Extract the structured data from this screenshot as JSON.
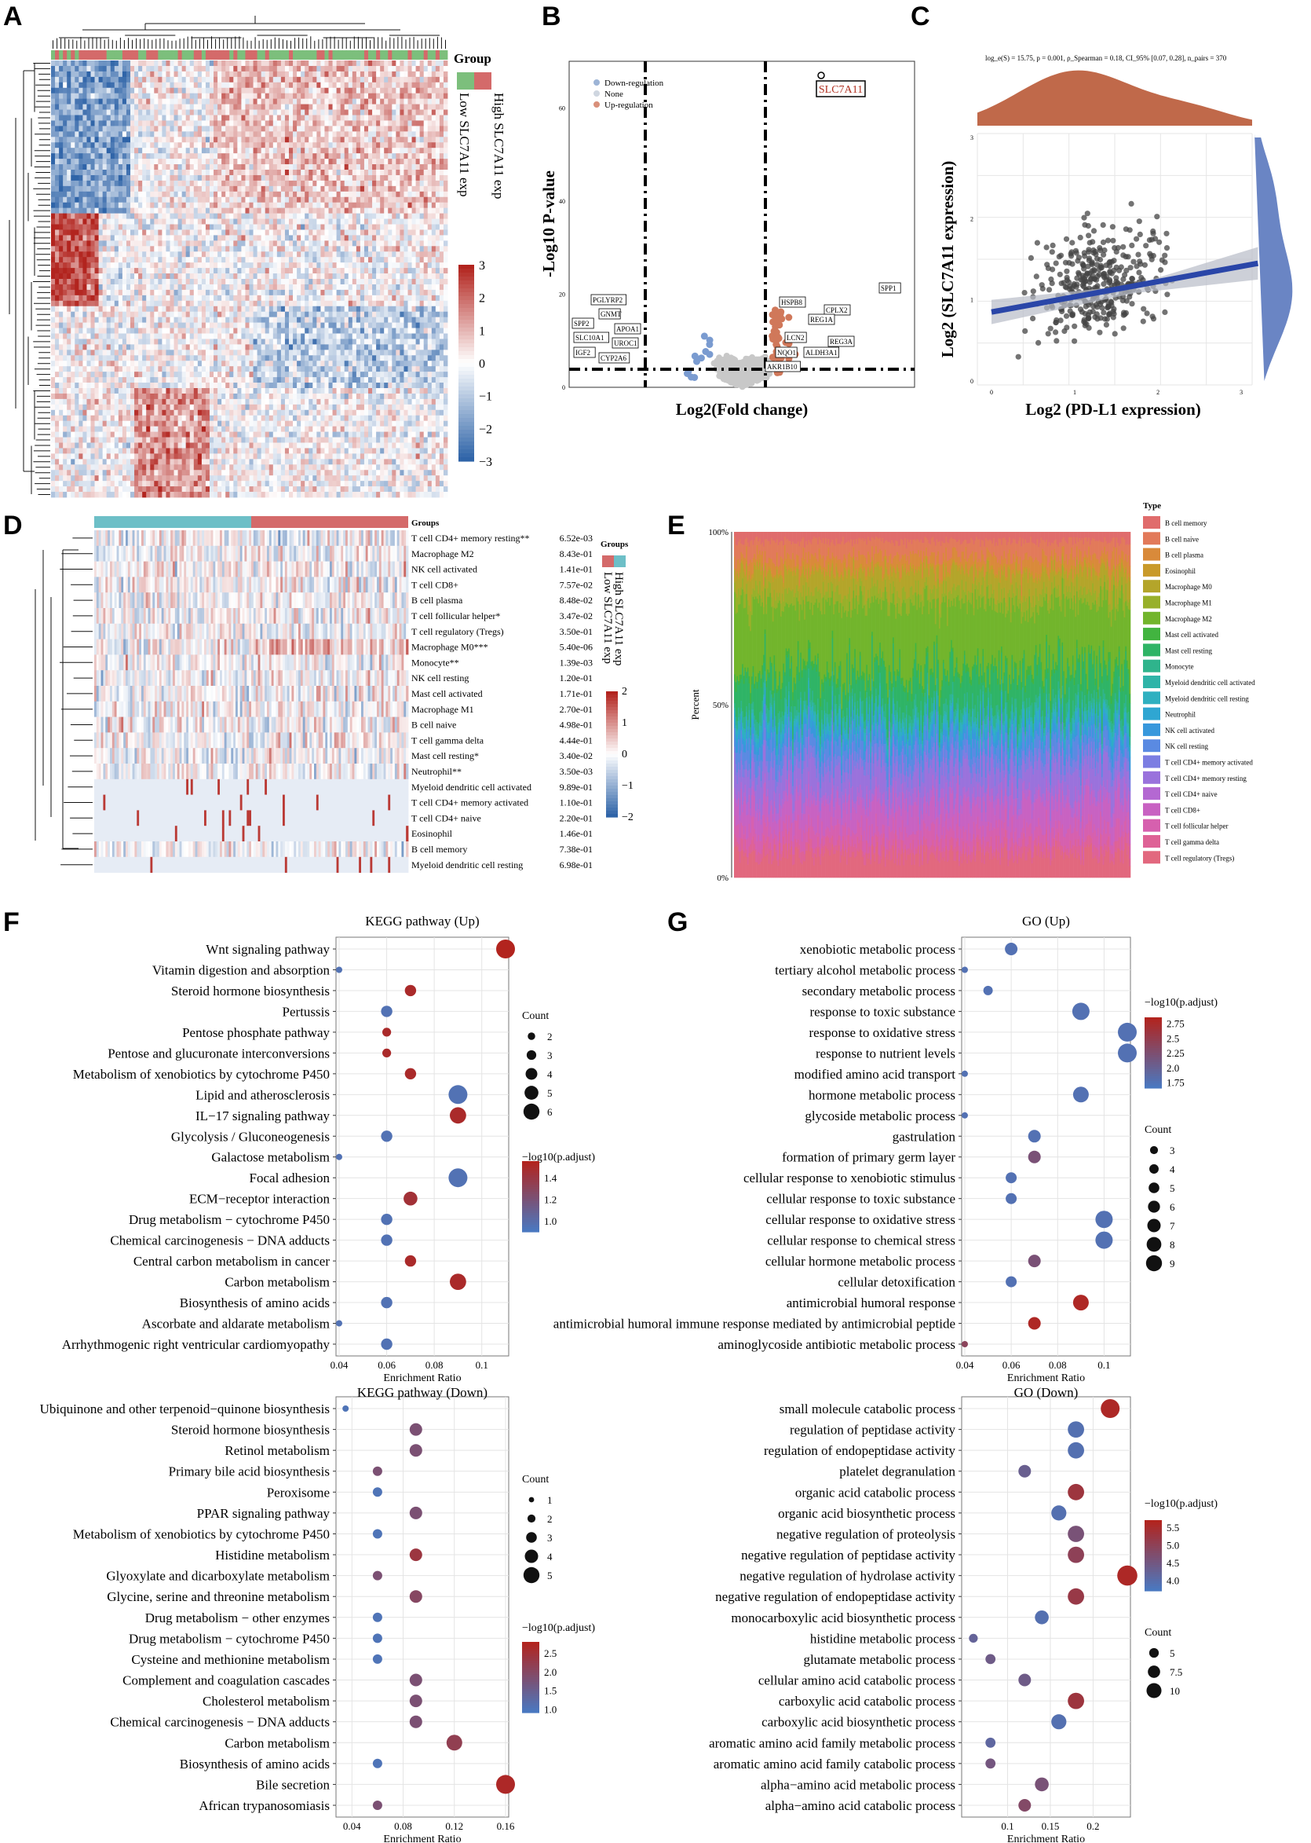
{
  "panel_letters": [
    "A",
    "B",
    "C",
    "D",
    "E",
    "F",
    "G"
  ],
  "colors": {
    "up": "#c0392b",
    "down": "#4a78c0",
    "none": "#c8c8c8",
    "high": "#d46a6a",
    "low": "#7cbf7c",
    "teal": "#6dbfc7"
  },
  "panel_a": {
    "legend_title": "Group",
    "group_labels": [
      "High SLC7A11 exp",
      "Low SLC7A11 exp"
    ],
    "colorbar_ticks": [
      "3",
      "2",
      "1",
      "0",
      "−1",
      "−2",
      "−3"
    ]
  },
  "panel_b": {
    "highlight": "SLC7A11",
    "legend": [
      "Down-regulation",
      "None",
      "Up-regulation"
    ],
    "xlabel": "Log2(Fold change)",
    "ylabel": "-Log10 P-value",
    "yticks": [
      "0",
      "20",
      "40",
      "60"
    ],
    "gene_labels_left": [
      "PGLYRP2",
      "GNMT",
      "SPP2",
      "APOA1",
      "SLC10A1",
      "UROC1",
      "IGF2",
      "CYP2A6"
    ],
    "gene_labels_right": [
      "SPP1",
      "HSPB8",
      "CPLX2",
      "REG1A",
      "LCN2",
      "REG3A",
      "NQO1",
      "ALDH3A1",
      "AKR1B10"
    ]
  },
  "panel_c": {
    "stats": "log_e(S) = 15.75, p = 0.001, ρ_Spearman = 0.18, CI_95% [0.07, 0.28], n_pairs = 370",
    "xlabel": "Log2 (PD-L1 expression)",
    "ylabel": "Log2 (SLC7A11 expression)",
    "xticks": [
      "0",
      "1",
      "2",
      "3"
    ],
    "yticks": [
      "0",
      "1",
      "2",
      "3"
    ]
  },
  "panel_d": {
    "legend_title": "Groups",
    "group_labels": [
      "High SLC7A11 exp",
      "Low SLC7A11 exp"
    ],
    "colorbar_ticks": [
      "2",
      "1",
      "0",
      "−1",
      "−2"
    ],
    "rows": [
      {
        "name": "T cell CD4+ memory resting**",
        "p": "6.52e-03"
      },
      {
        "name": "Macrophage M2",
        "p": "8.43e-01"
      },
      {
        "name": "NK cell activated",
        "p": "1.41e-01"
      },
      {
        "name": "T cell CD8+",
        "p": "7.57e-02"
      },
      {
        "name": "B cell plasma",
        "p": "8.48e-02"
      },
      {
        "name": "T cell follicular helper*",
        "p": "3.47e-02"
      },
      {
        "name": "T cell regulatory (Tregs)",
        "p": "3.50e-01"
      },
      {
        "name": "Macrophage M0***",
        "p": "5.40e-06"
      },
      {
        "name": "Monocyte**",
        "p": "1.39e-03"
      },
      {
        "name": "NK cell resting",
        "p": "1.20e-01"
      },
      {
        "name": "Mast cell activated",
        "p": "1.71e-01"
      },
      {
        "name": "Macrophage M1",
        "p": "2.70e-01"
      },
      {
        "name": "B cell naive",
        "p": "4.98e-01"
      },
      {
        "name": "T cell gamma delta",
        "p": "4.44e-01"
      },
      {
        "name": "Mast cell resting*",
        "p": "3.40e-02"
      },
      {
        "name": "Neutrophil**",
        "p": "3.50e-03"
      },
      {
        "name": "Myeloid dendritic cell activated",
        "p": "9.89e-01"
      },
      {
        "name": "T cell CD4+ memory activated",
        "p": "1.10e-01"
      },
      {
        "name": "T cell CD4+ naive",
        "p": "2.20e-01"
      },
      {
        "name": "Eosinophil",
        "p": "1.46e-01"
      },
      {
        "name": "B cell memory",
        "p": "7.38e-01"
      },
      {
        "name": "Myeloid dendritic cell resting",
        "p": "6.98e-01"
      }
    ]
  },
  "panel_e": {
    "legend_title": "Type",
    "ylabel": "Percent",
    "yticks": [
      "0%",
      "50%",
      "100%"
    ],
    "types": [
      {
        "name": "B cell memory",
        "color": "#e06c6c"
      },
      {
        "name": "B cell naive",
        "color": "#e27a5a"
      },
      {
        "name": "B cell plasma",
        "color": "#d98a3a"
      },
      {
        "name": "Eosinophil",
        "color": "#c99a2a"
      },
      {
        "name": "Macrophage M0",
        "color": "#b4a52a"
      },
      {
        "name": "Macrophage M1",
        "color": "#98b02a"
      },
      {
        "name": "Macrophage M2",
        "color": "#72b52c"
      },
      {
        "name": "Mast cell activated",
        "color": "#42b440"
      },
      {
        "name": "Mast cell resting",
        "color": "#2fb466"
      },
      {
        "name": "Monocyte",
        "color": "#2fb48c"
      },
      {
        "name": "Myeloid dendritic cell activated",
        "color": "#2fb4a8"
      },
      {
        "name": "Myeloid dendritic cell resting",
        "color": "#2fb0c0"
      },
      {
        "name": "Neutrophil",
        "color": "#2fa6d2"
      },
      {
        "name": "NK cell activated",
        "color": "#3898dc"
      },
      {
        "name": "NK cell resting",
        "color": "#5a8ae2"
      },
      {
        "name": "T cell CD4+ memory activated",
        "color": "#7c7ee2"
      },
      {
        "name": "T cell CD4+ memory resting",
        "color": "#9a72dc"
      },
      {
        "name": "T cell CD4+ naive",
        "color": "#b468d2"
      },
      {
        "name": "T cell CD8+",
        "color": "#c862c2"
      },
      {
        "name": "T cell follicular helper",
        "color": "#d660ae"
      },
      {
        "name": "T cell gamma delta",
        "color": "#de6296"
      },
      {
        "name": "T cell regulatory (Tregs)",
        "color": "#e2687e"
      }
    ]
  },
  "chart_data": [
    {
      "id": "kegg_up",
      "type": "scatter",
      "title": "KEGG pathway (Up)",
      "xlabel": "Enrichment Ratio",
      "xlim": [
        0.04,
        0.11
      ],
      "xticks": [
        0.04,
        0.06,
        0.08,
        0.1
      ],
      "color_label": "−log10(p.adjust)",
      "color_ticks": [
        1.0,
        1.2,
        1.4
      ],
      "color_range": [
        0.9,
        1.55
      ],
      "size_label": "Count",
      "size_ticks": [
        2,
        3,
        4,
        5,
        6
      ],
      "size_range": [
        1,
        6
      ],
      "points": [
        {
          "term": "Wnt signaling pathway",
          "x": 0.11,
          "count": 6,
          "color": 1.55
        },
        {
          "term": "Vitamin digestion and absorption",
          "x": 0.04,
          "count": 1,
          "color": 0.95
        },
        {
          "term": "Steroid hormone biosynthesis",
          "x": 0.07,
          "count": 3,
          "color": 1.5
        },
        {
          "term": "Pertussis",
          "x": 0.06,
          "count": 3,
          "color": 0.95
        },
        {
          "term": "Pentose phosphate pathway",
          "x": 0.06,
          "count": 2,
          "color": 1.5
        },
        {
          "term": "Pentose and glucuronate interconversions",
          "x": 0.06,
          "count": 2,
          "color": 1.5
        },
        {
          "term": "Metabolism of xenobiotics by cytochrome P450",
          "x": 0.07,
          "count": 3,
          "color": 1.5
        },
        {
          "term": "Lipid and atherosclerosis",
          "x": 0.09,
          "count": 6,
          "color": 0.95
        },
        {
          "term": "IL−17 signaling pathway",
          "x": 0.09,
          "count": 5,
          "color": 1.5
        },
        {
          "term": "Glycolysis / Gluconeogenesis",
          "x": 0.06,
          "count": 3,
          "color": 0.95
        },
        {
          "term": "Galactose metabolism",
          "x": 0.04,
          "count": 1,
          "color": 0.95
        },
        {
          "term": "Focal adhesion",
          "x": 0.09,
          "count": 6,
          "color": 0.95
        },
        {
          "term": "ECM−receptor interaction",
          "x": 0.07,
          "count": 4,
          "color": 1.45
        },
        {
          "term": "Drug metabolism − cytochrome P450",
          "x": 0.06,
          "count": 3,
          "color": 0.95
        },
        {
          "term": "Chemical carcinogenesis − DNA adducts",
          "x": 0.06,
          "count": 3,
          "color": 0.95
        },
        {
          "term": "Central carbon metabolism in cancer",
          "x": 0.07,
          "count": 3,
          "color": 1.5
        },
        {
          "term": "Carbon metabolism",
          "x": 0.09,
          "count": 5,
          "color": 1.5
        },
        {
          "term": "Biosynthesis of amino acids",
          "x": 0.06,
          "count": 3,
          "color": 0.95
        },
        {
          "term": "Ascorbate and aldarate metabolism",
          "x": 0.04,
          "count": 1,
          "color": 0.95
        },
        {
          "term": "Arrhythmogenic right ventricular cardiomyopathy",
          "x": 0.06,
          "count": 3,
          "color": 0.95
        }
      ]
    },
    {
      "id": "go_up",
      "type": "scatter",
      "title": "GO (Up)",
      "xlabel": "Enrichment Ratio",
      "xlim": [
        0.04,
        0.11
      ],
      "xticks": [
        0.04,
        0.06,
        0.08,
        0.1
      ],
      "color_label": "−log10(p.adjust)",
      "color_ticks": [
        1.75,
        2.0,
        2.25,
        2.5,
        2.75
      ],
      "color_range": [
        1.65,
        2.85
      ],
      "size_label": "Count",
      "size_ticks": [
        3,
        4,
        5,
        6,
        7,
        8,
        9
      ],
      "size_range": [
        1,
        9
      ],
      "points": [
        {
          "term": "xenobiotic metabolic process",
          "x": 0.06,
          "count": 5,
          "color": 1.75
        },
        {
          "term": "tertiary alcohol metabolic process",
          "x": 0.04,
          "count": 1,
          "color": 1.75
        },
        {
          "term": "secondary metabolic process",
          "x": 0.05,
          "count": 3,
          "color": 1.75
        },
        {
          "term": "response to toxic substance",
          "x": 0.09,
          "count": 8,
          "color": 1.75
        },
        {
          "term": "response to oxidative stress",
          "x": 0.11,
          "count": 9,
          "color": 1.75
        },
        {
          "term": "response to nutrient levels",
          "x": 0.11,
          "count": 9,
          "color": 1.75
        },
        {
          "term": "modified amino acid transport",
          "x": 0.04,
          "count": 1,
          "color": 1.75
        },
        {
          "term": "hormone metabolic process",
          "x": 0.09,
          "count": 7,
          "color": 1.75
        },
        {
          "term": "glycoside metabolic process",
          "x": 0.04,
          "count": 1,
          "color": 1.75
        },
        {
          "term": "gastrulation",
          "x": 0.07,
          "count": 5,
          "color": 1.75
        },
        {
          "term": "formation of primary germ layer",
          "x": 0.07,
          "count": 5,
          "color": 2.2
        },
        {
          "term": "cellular response to xenobiotic stimulus",
          "x": 0.06,
          "count": 4,
          "color": 1.75
        },
        {
          "term": "cellular response to toxic substance",
          "x": 0.06,
          "count": 4,
          "color": 1.75
        },
        {
          "term": "cellular response to oxidative stress",
          "x": 0.1,
          "count": 8,
          "color": 1.75
        },
        {
          "term": "cellular response to chemical stress",
          "x": 0.1,
          "count": 8,
          "color": 1.75
        },
        {
          "term": "cellular hormone metabolic process",
          "x": 0.07,
          "count": 5,
          "color": 2.2
        },
        {
          "term": "cellular detoxification",
          "x": 0.06,
          "count": 4,
          "color": 1.75
        },
        {
          "term": "antimicrobial humoral response",
          "x": 0.09,
          "count": 7,
          "color": 2.8
        },
        {
          "term": "antimicrobial humoral immune response mediated by antimicrobial peptide",
          "x": 0.07,
          "count": 5,
          "color": 2.8
        },
        {
          "term": "aminoglycoside antibiotic metabolic process",
          "x": 0.04,
          "count": 1,
          "color": 2.4
        }
      ]
    },
    {
      "id": "kegg_down",
      "type": "scatter",
      "title": "KEGG pathway (Down)",
      "xlabel": "Enrichment Ratio",
      "xlim": [
        0.03,
        0.16
      ],
      "xticks": [
        0.04,
        0.08,
        0.12,
        0.16
      ],
      "color_label": "−log10(p.adjust)",
      "color_ticks": [
        1.0,
        1.5,
        2.0,
        2.5
      ],
      "color_range": [
        0.9,
        2.8
      ],
      "size_label": "Count",
      "size_ticks": [
        1,
        2,
        3,
        4,
        5
      ],
      "size_range": [
        1,
        5
      ],
      "points": [
        {
          "term": "Ubiquinone and other terpenoid−quinone biosynthesis",
          "x": 0.035,
          "count": 1,
          "color": 1.0
        },
        {
          "term": "Steroid hormone biosynthesis",
          "x": 0.09,
          "count": 3,
          "color": 1.8
        },
        {
          "term": "Retinol metabolism",
          "x": 0.09,
          "count": 3,
          "color": 1.8
        },
        {
          "term": "Primary bile acid biosynthesis",
          "x": 0.06,
          "count": 2,
          "color": 1.8
        },
        {
          "term": "Peroxisome",
          "x": 0.06,
          "count": 2,
          "color": 1.0
        },
        {
          "term": "PPAR signaling pathway",
          "x": 0.09,
          "count": 3,
          "color": 1.8
        },
        {
          "term": "Metabolism of xenobiotics by cytochrome P450",
          "x": 0.06,
          "count": 2,
          "color": 1.0
        },
        {
          "term": "Histidine metabolism",
          "x": 0.09,
          "count": 3,
          "color": 2.4
        },
        {
          "term": "Glyoxylate and dicarboxylate metabolism",
          "x": 0.06,
          "count": 2,
          "color": 1.8
        },
        {
          "term": "Glycine, serine and threonine metabolism",
          "x": 0.09,
          "count": 3,
          "color": 2.0
        },
        {
          "term": "Drug metabolism − other enzymes",
          "x": 0.06,
          "count": 2,
          "color": 1.0
        },
        {
          "term": "Drug metabolism − cytochrome P450",
          "x": 0.06,
          "count": 2,
          "color": 1.0
        },
        {
          "term": "Cysteine and methionine metabolism",
          "x": 0.06,
          "count": 2,
          "color": 1.0
        },
        {
          "term": "Complement and coagulation cascades",
          "x": 0.09,
          "count": 3,
          "color": 1.8
        },
        {
          "term": "Cholesterol metabolism",
          "x": 0.09,
          "count": 3,
          "color": 1.8
        },
        {
          "term": "Chemical carcinogenesis − DNA adducts",
          "x": 0.09,
          "count": 3,
          "color": 1.8
        },
        {
          "term": "Carbon metabolism",
          "x": 0.12,
          "count": 4,
          "color": 2.2
        },
        {
          "term": "Biosynthesis of amino acids",
          "x": 0.06,
          "count": 2,
          "color": 1.0
        },
        {
          "term": "Bile secretion",
          "x": 0.16,
          "count": 5,
          "color": 2.7
        },
        {
          "term": "African trypanosomiasis",
          "x": 0.06,
          "count": 2,
          "color": 1.8
        }
      ]
    },
    {
      "id": "go_down",
      "type": "scatter",
      "title": "GO (Down)",
      "xlabel": "Enrichment Ratio",
      "xlim": [
        0.05,
        0.24
      ],
      "xticks": [
        0.1,
        0.15,
        0.2
      ],
      "color_label": "−log10(p.adjust)",
      "color_ticks": [
        4.0,
        4.5,
        5.0,
        5.5
      ],
      "color_range": [
        3.7,
        5.7
      ],
      "size_label": "Count",
      "size_ticks": [
        5.0,
        7.5,
        10.0
      ],
      "size_range": [
        1,
        11
      ],
      "points": [
        {
          "term": "small molecule catabolic process",
          "x": 0.22,
          "count": 11,
          "color": 5.6
        },
        {
          "term": "regulation of peptidase activity",
          "x": 0.18,
          "count": 9,
          "color": 3.9
        },
        {
          "term": "regulation of endopeptidase activity",
          "x": 0.18,
          "count": 9,
          "color": 3.9
        },
        {
          "term": "platelet degranulation",
          "x": 0.12,
          "count": 6,
          "color": 4.3
        },
        {
          "term": "organic acid catabolic process",
          "x": 0.18,
          "count": 9,
          "color": 5.3
        },
        {
          "term": "organic acid biosynthetic process",
          "x": 0.16,
          "count": 8,
          "color": 3.9
        },
        {
          "term": "negative regulation of proteolysis",
          "x": 0.18,
          "count": 9,
          "color": 4.6
        },
        {
          "term": "negative regulation of peptidase activity",
          "x": 0.18,
          "count": 9,
          "color": 5.0
        },
        {
          "term": "negative regulation of hydrolase activity",
          "x": 0.24,
          "count": 12,
          "color": 5.6
        },
        {
          "term": "negative regulation of endopeptidase activity",
          "x": 0.18,
          "count": 9,
          "color": 5.2
        },
        {
          "term": "monocarboxylic acid biosynthetic process",
          "x": 0.14,
          "count": 7,
          "color": 3.9
        },
        {
          "term": "histidine metabolic process",
          "x": 0.06,
          "count": 3,
          "color": 4.2
        },
        {
          "term": "glutamate metabolic process",
          "x": 0.08,
          "count": 4,
          "color": 4.4
        },
        {
          "term": "cellular amino acid catabolic process",
          "x": 0.12,
          "count": 6,
          "color": 4.4
        },
        {
          "term": "carboxylic acid catabolic process",
          "x": 0.18,
          "count": 9,
          "color": 5.3
        },
        {
          "term": "carboxylic acid biosynthetic process",
          "x": 0.16,
          "count": 8,
          "color": 3.9
        },
        {
          "term": "aromatic amino acid family metabolic process",
          "x": 0.08,
          "count": 4,
          "color": 4.1
        },
        {
          "term": "aromatic amino acid family catabolic process",
          "x": 0.08,
          "count": 4,
          "color": 4.5
        },
        {
          "term": "alpha−amino acid metabolic process",
          "x": 0.14,
          "count": 7,
          "color": 4.6
        },
        {
          "term": "alpha−amino acid catabolic process",
          "x": 0.12,
          "count": 6,
          "color": 4.8
        }
      ]
    }
  ]
}
